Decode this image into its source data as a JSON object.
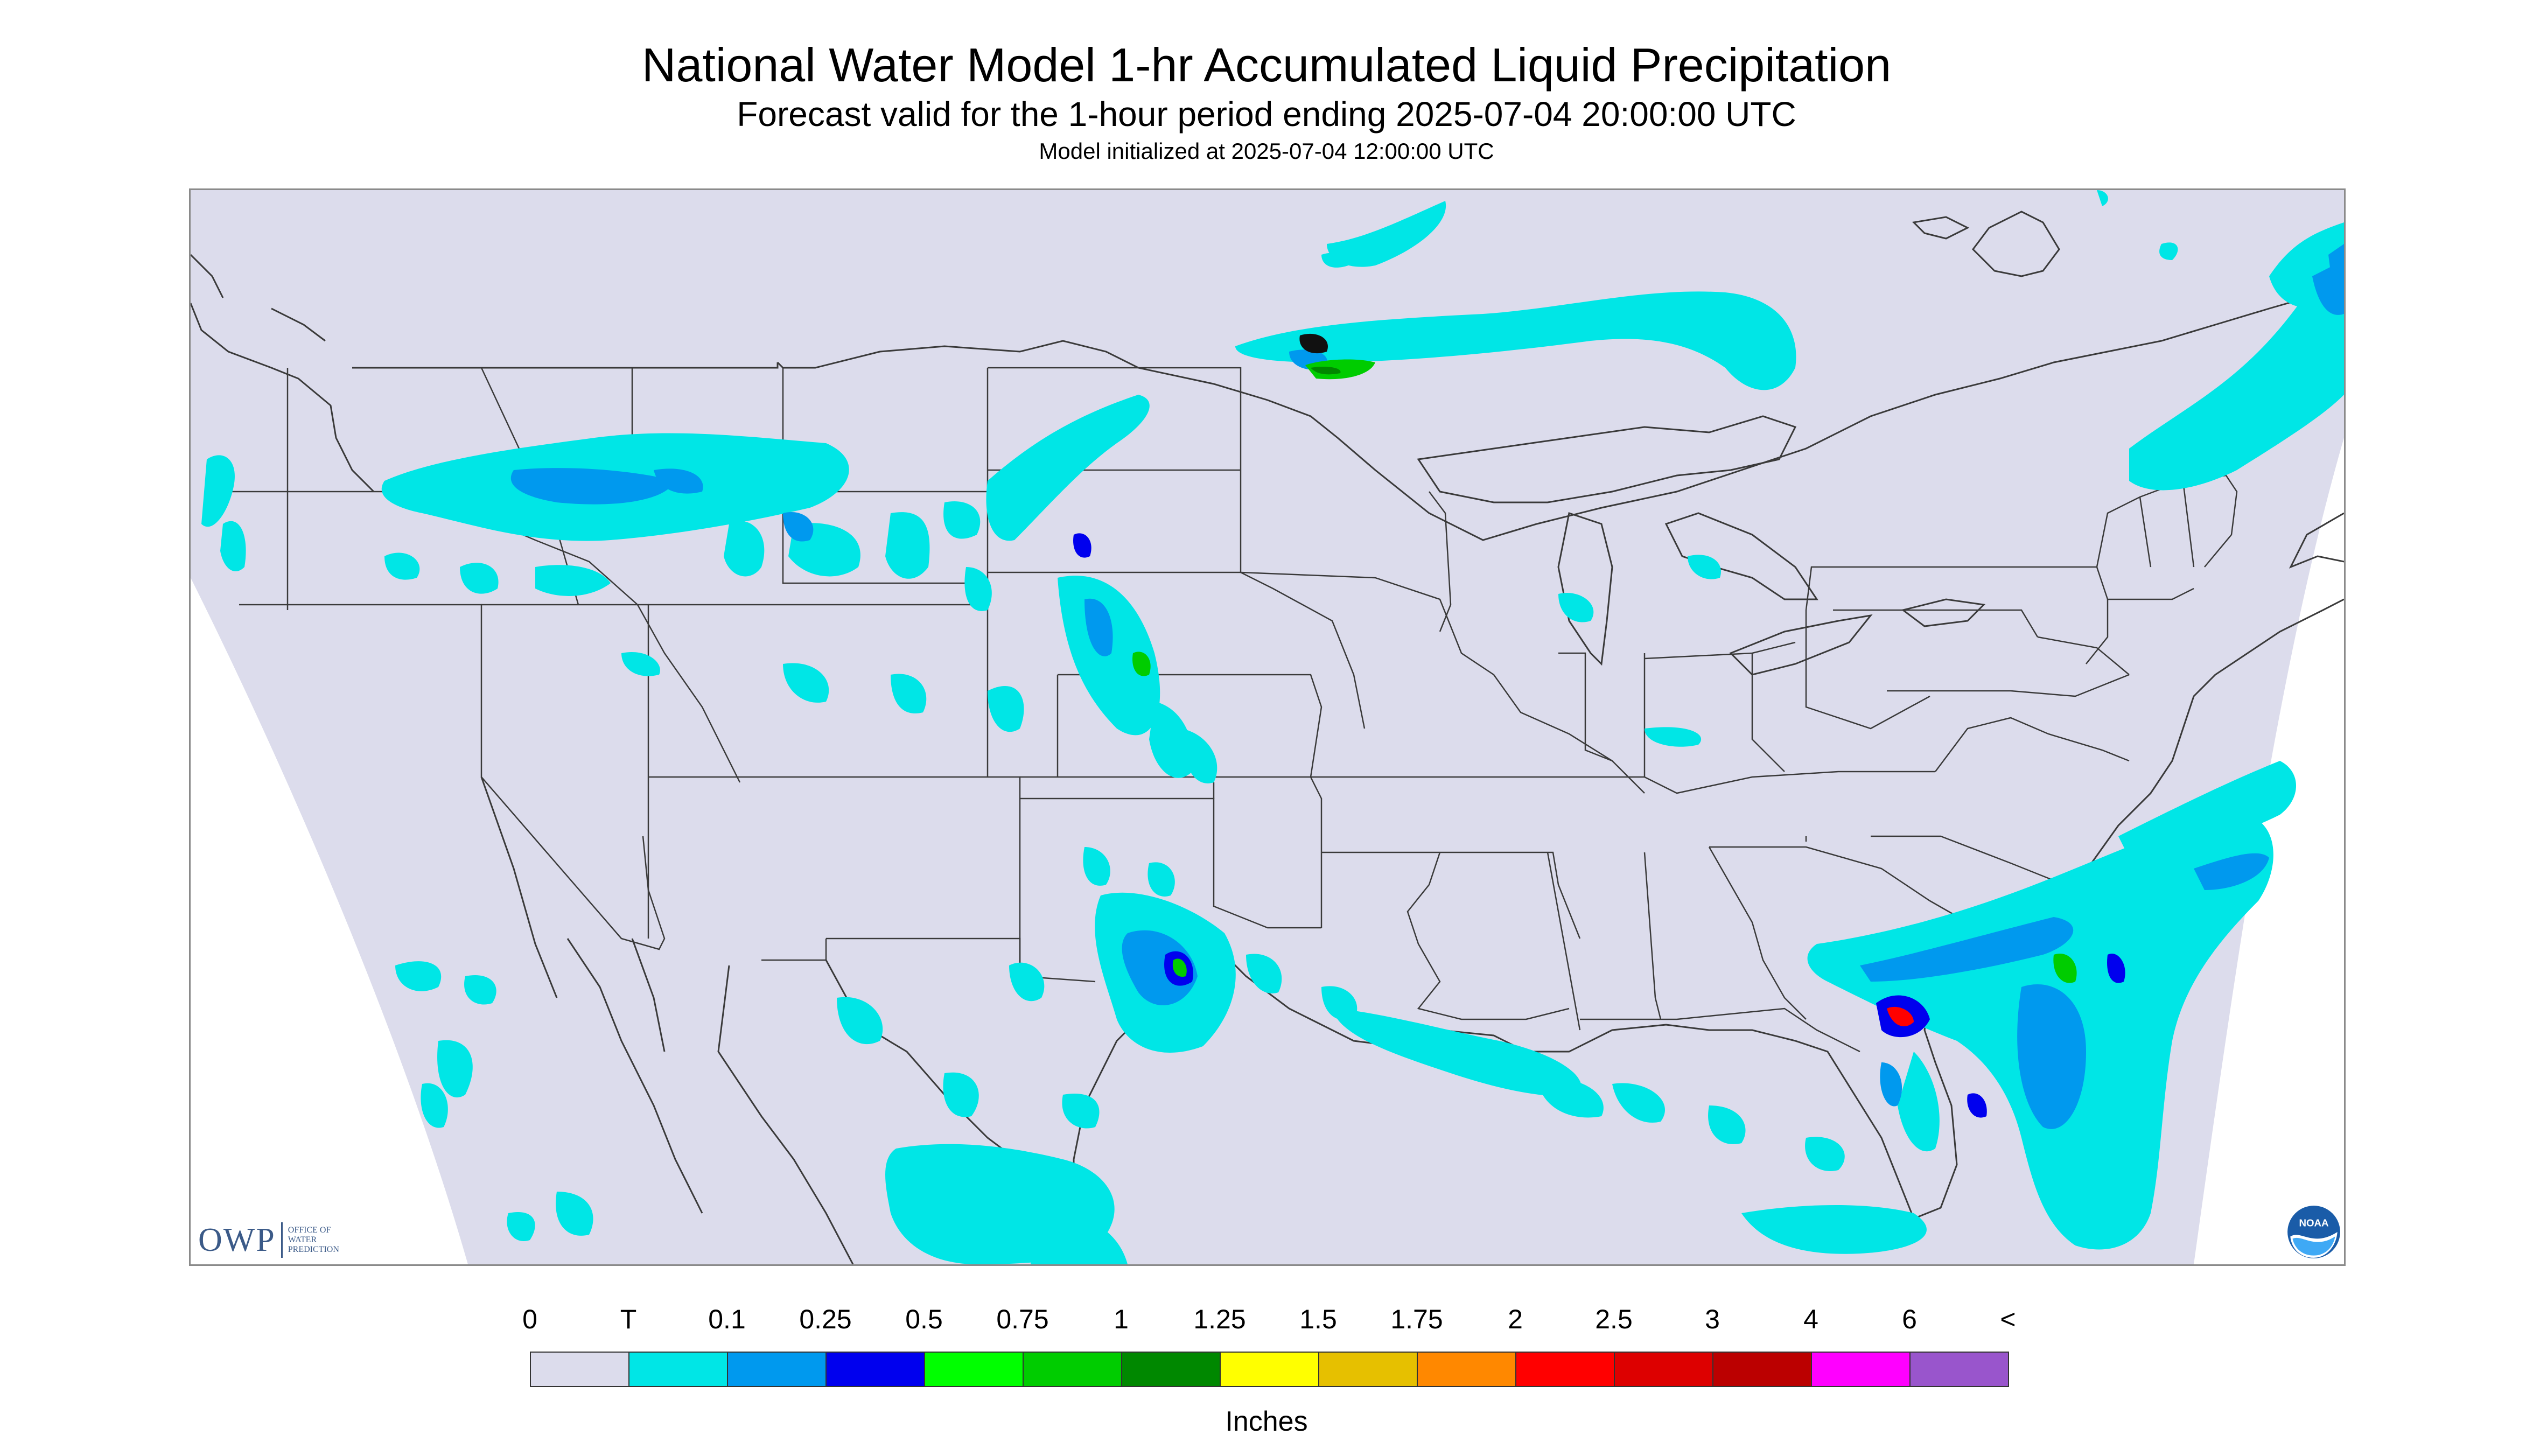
{
  "title": "National Water Model 1-hr Accumulated Liquid Precipitation",
  "subtitle": "Forecast valid for the 1-hour period ending 2025-07-04 20:00:00 UTC",
  "init_line": "Model initialized at 2025-07-04 12:00:00 UTC",
  "logo_owp": {
    "mark": "OWP",
    "line1": "OFFICE OF",
    "line2": "WATER",
    "line3": "PREDICTION"
  },
  "logo_noaa": {
    "text": "NOAA"
  },
  "colors": {
    "background_no_data": "#ffffff",
    "zero_fill": "#dcdcec",
    "state_lines": "#3a3a3a"
  },
  "legend": {
    "units": "Inches",
    "labels": [
      "0",
      "T",
      "0.1",
      "0.25",
      "0.5",
      "0.75",
      "1",
      "1.25",
      "1.5",
      "1.75",
      "2",
      "2.5",
      "3",
      "4",
      "6",
      "<"
    ],
    "colors": [
      "#dcdcec",
      "#00e6e6",
      "#0099ee",
      "#0000ee",
      "#00ff00",
      "#00cc00",
      "#008800",
      "#ffff00",
      "#e6c000",
      "#ff8800",
      "#ff0000",
      "#dd0000",
      "#bb0000",
      "#ff00ff",
      "#9955cc"
    ]
  }
}
